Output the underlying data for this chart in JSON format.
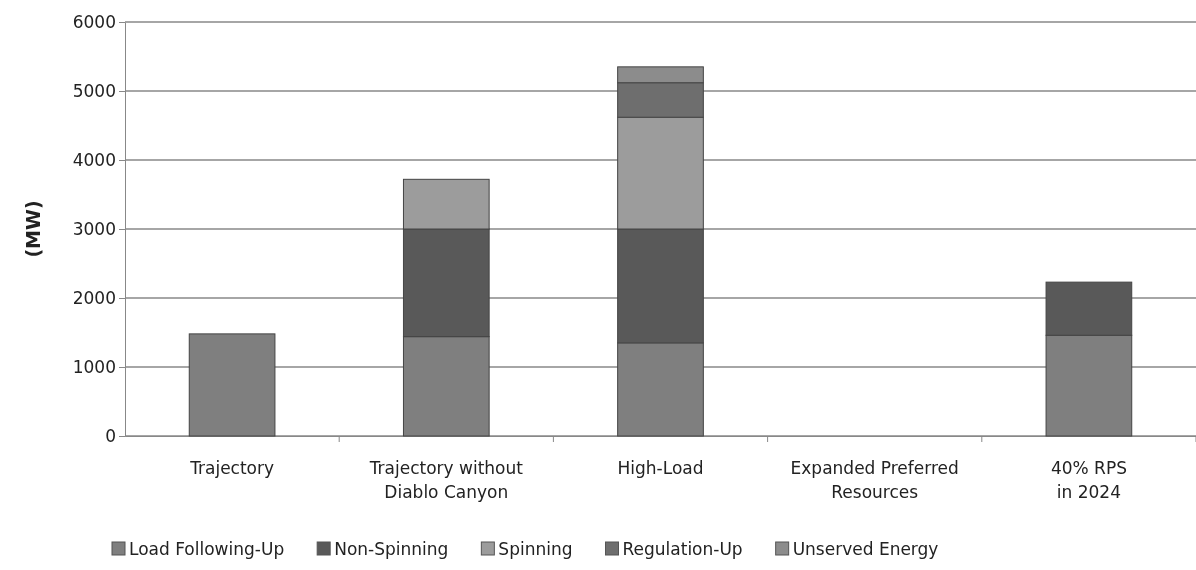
{
  "chart_data": {
    "type": "bar",
    "stacked": true,
    "ylabel": "(MW)",
    "categories": [
      "Trajectory",
      "Trajectory without\nDiablo Canyon",
      "High-Load",
      "Expanded Preferred\nResources",
      "40% RPS\nin 2024"
    ],
    "series": [
      {
        "name": "Load Following-Up",
        "color": "#7f7f7f",
        "values": [
          1480,
          1440,
          1350,
          null,
          1460
        ]
      },
      {
        "name": "Non-Spinning",
        "color": "#595959",
        "values": [
          null,
          1560,
          1650,
          null,
          770
        ]
      },
      {
        "name": "Spinning",
        "color": "#9c9c9c",
        "values": [
          null,
          720,
          1620,
          null,
          null
        ]
      },
      {
        "name": "Regulation-Up",
        "color": "#6e6e6e",
        "values": [
          null,
          null,
          500,
          null,
          null
        ]
      },
      {
        "name": "Unserved Energy",
        "color": "#8c8c8c",
        "values": [
          null,
          null,
          230,
          null,
          null
        ]
      }
    ],
    "ylim": [
      0,
      6000
    ],
    "yticks": [
      0,
      1000,
      2000,
      3000,
      4000,
      5000,
      6000
    ],
    "grid": "y",
    "legend": "bottom"
  }
}
